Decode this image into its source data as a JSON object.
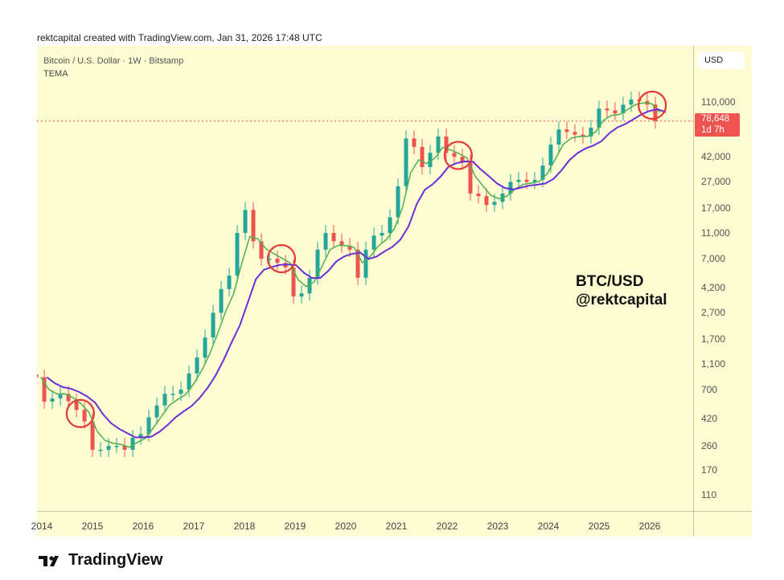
{
  "caption": "rektcapital created with TradingView.com, Jan 31, 2026 17:48 UTC",
  "header": {
    "symbol": "Bitcoin / U.S. Dollar · 1W · Bitstamp",
    "indicator": "TEMA",
    "currency_button": "USD"
  },
  "last_price": {
    "value": "78,648",
    "countdown": "1d 7h"
  },
  "watermark": {
    "line1": "BTC/USD",
    "line2": "@rektcapital"
  },
  "logo": {
    "text": "TradingView"
  },
  "colors": {
    "background": "#fdfcd2",
    "up": "#26a69a",
    "down": "#ef5350",
    "fast_ma": "#4caf50",
    "slow_ma": "#6a2fd6",
    "circle": "#e53935"
  },
  "chart_data": {
    "type": "candlestick",
    "title": "Bitcoin / U.S. Dollar · 1W · Bitstamp",
    "yscale": "log",
    "ylim": [
      85,
      190000
    ],
    "xlim": [
      2013.92,
      2026.9
    ],
    "y_ticks": [
      "110",
      "170",
      "260",
      "420",
      "700",
      "1,100",
      "1,700",
      "2,700",
      "4,200",
      "7,000",
      "11,000",
      "17,000",
      "27,000",
      "42,000",
      "110,000"
    ],
    "y_tick_values": [
      110,
      170,
      260,
      420,
      700,
      1100,
      1700,
      2700,
      4200,
      7000,
      11000,
      17000,
      27000,
      42000,
      110000
    ],
    "x_ticks": [
      "2014",
      "2015",
      "2016",
      "2017",
      "2018",
      "2019",
      "2020",
      "2021",
      "2022",
      "2023",
      "2024",
      "2025",
      "2026"
    ],
    "x_start_year": 2013.89,
    "x_step_years": 0.1587,
    "closes": [
      870,
      567,
      600,
      650,
      570,
      490,
      400,
      243,
      243,
      260,
      260,
      243,
      300,
      320,
      430,
      530,
      650,
      650,
      700,
      930,
      1230,
      1750,
      2700,
      4100,
      5200,
      11000,
      16500,
      9500,
      7000,
      7000,
      6500,
      6000,
      3600,
      3800,
      5000,
      8200,
      11000,
      9500,
      8800,
      8200,
      5000,
      8200,
      10500,
      11000,
      14500,
      25000,
      58000,
      50000,
      35000,
      45000,
      60000,
      45000,
      42000,
      38000,
      22000,
      21000,
      18000,
      19000,
      22000,
      27000,
      28000,
      27000,
      28000,
      36000,
      52000,
      68000,
      65000,
      62000,
      60000,
      70000,
      98000,
      95000,
      90000,
      105000,
      115000,
      112000,
      105000,
      78648
    ],
    "last_price": 78648,
    "annotations": [
      {
        "type": "circle",
        "year": 2014.76,
        "price": 460
      },
      {
        "type": "circle",
        "year": 2018.73,
        "price": 7000
      },
      {
        "type": "circle",
        "year": 2022.22,
        "price": 43000
      },
      {
        "type": "circle",
        "year": 2026.05,
        "price": 104000
      }
    ],
    "series": [
      {
        "name": "TEMA fast"
      },
      {
        "name": "TEMA slow"
      }
    ]
  }
}
